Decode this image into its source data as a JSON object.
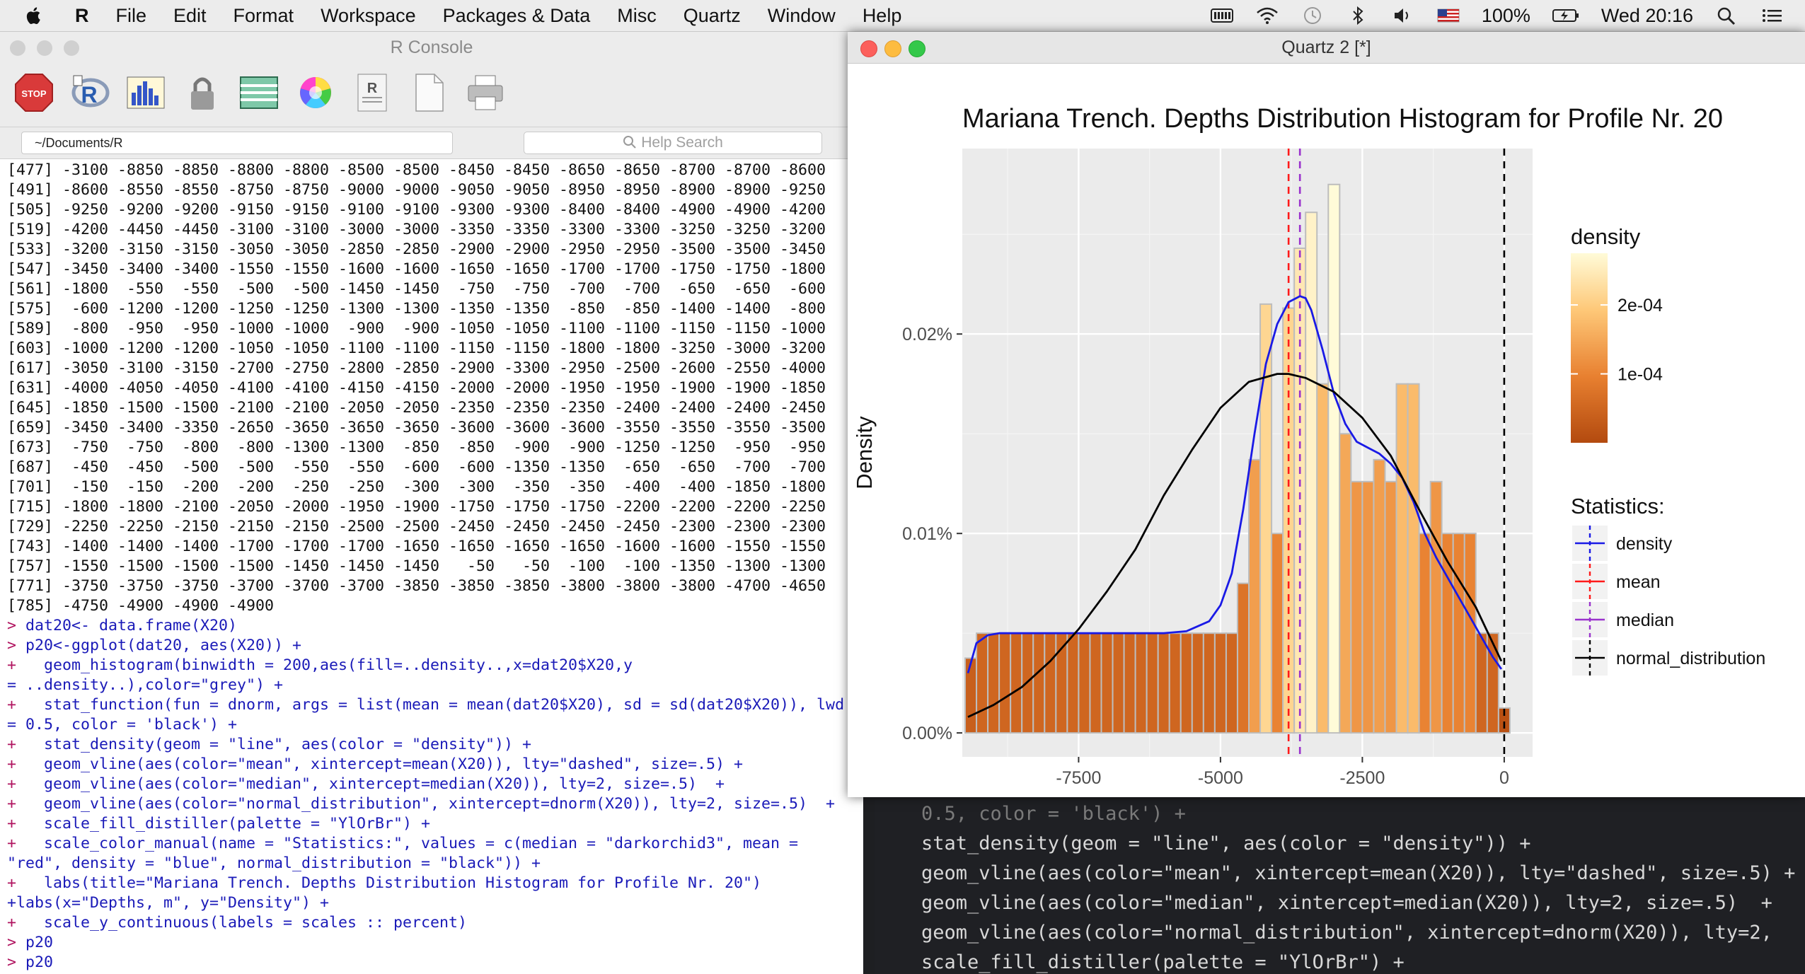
{
  "menubar": {
    "app_name": "R",
    "items": [
      "File",
      "Edit",
      "Format",
      "Workspace",
      "Packages & Data",
      "Misc",
      "Quartz",
      "Window",
      "Help"
    ],
    "battery": "100%",
    "clock": "Wed 20:16"
  },
  "console_window": {
    "title": "R Console",
    "path": "~/Documents/R",
    "help_search_placeholder": "Help Search",
    "toolbar_icons": [
      "stop-icon",
      "r-source-icon",
      "chart-icon",
      "lock-icon",
      "grid-table-icon",
      "color-wheel-icon",
      "r-doc-icon",
      "new-doc-icon",
      "print-icon"
    ],
    "output_lines": [
      "[477] -3100 -8850 -8850 -8800 -8800 -8500 -8500 -8450 -8450 -8650 -8650 -8700 -8700 -8600",
      "[491] -8600 -8550 -8550 -8750 -8750 -9000 -9000 -9050 -9050 -8950 -8950 -8900 -8900 -9250",
      "[505] -9250 -9200 -9200 -9150 -9150 -9100 -9100 -9300 -9300 -8400 -8400 -4900 -4900 -4200",
      "[519] -4200 -4450 -4450 -3100 -3100 -3000 -3000 -3350 -3350 -3300 -3300 -3250 -3250 -3200",
      "[533] -3200 -3150 -3150 -3050 -3050 -2850 -2850 -2900 -2900 -2950 -2950 -3500 -3500 -3450",
      "[547] -3450 -3400 -3400 -1550 -1550 -1600 -1600 -1650 -1650 -1700 -1700 -1750 -1750 -1800",
      "[561] -1800  -550  -550  -500  -500 -1450 -1450  -750  -750  -700  -700  -650  -650  -600",
      "[575]  -600 -1200 -1200 -1250 -1250 -1300 -1300 -1350 -1350  -850  -850 -1400 -1400  -800",
      "[589]  -800  -950  -950 -1000 -1000  -900  -900 -1050 -1050 -1100 -1100 -1150 -1150 -1000",
      "[603] -1000 -1200 -1200 -1050 -1050 -1100 -1100 -1150 -1150 -1800 -1800 -3250 -3000 -3200",
      "[617] -3050 -3100 -3150 -2700 -2750 -2800 -2850 -2900 -3300 -2950 -2500 -2600 -2550 -4000",
      "[631] -4000 -4050 -4050 -4100 -4100 -4150 -4150 -2000 -2000 -1950 -1950 -1900 -1900 -1850",
      "[645] -1850 -1500 -1500 -2100 -2100 -2050 -2050 -2350 -2350 -2350 -2400 -2400 -2400 -2450",
      "[659] -3450 -3400 -3350 -2650 -3650 -3650 -3650 -3600 -3600 -3600 -3550 -3550 -3550 -3500",
      "[673]  -750  -750  -800  -800 -1300 -1300  -850  -850  -900  -900 -1250 -1250  -950  -950",
      "[687]  -450  -450  -500  -500  -550  -550  -600  -600 -1350 -1350  -650  -650  -700  -700",
      "[701]  -150  -150  -200  -200  -250  -250  -300  -300  -350  -350  -400  -400 -1850 -1800",
      "[715] -1800 -1800 -2100 -2050 -2000 -1950 -1900 -1750 -1750 -1750 -2200 -2200 -2200 -2250",
      "[729] -2250 -2250 -2150 -2150 -2150 -2500 -2500 -2450 -2450 -2450 -2450 -2300 -2300 -2300",
      "[743] -1400 -1400 -1400 -1700 -1700 -1700 -1650 -1650 -1650 -1650 -1600 -1600 -1550 -1550",
      "[757] -1550 -1500 -1500 -1500 -1450 -1450 -1450   -50   -50  -100  -100 -1350 -1300 -1300",
      "[771] -3750 -3750 -3750 -3700 -3700 -3700 -3850 -3850 -3850 -3800 -3800 -3800 -4700 -4650",
      "[785] -4750 -4900 -4900 -4900"
    ],
    "command_lines": [
      {
        "prefix": "> ",
        "text": "dat20<- data.frame(X20)"
      },
      {
        "prefix": "> ",
        "text": "p20<-ggplot(dat20, aes(X20)) +"
      },
      {
        "prefix": "+ ",
        "text": "  geom_histogram(binwidth = 200,aes(fill=..density..,x=dat20$X20,y"
      },
      {
        "prefix": "",
        "text": "= ..density..),color=\"grey\") +"
      },
      {
        "prefix": "+ ",
        "text": "  stat_function(fun = dnorm, args = list(mean = mean(dat20$X20), sd = sd(dat20$X20)), lwd"
      },
      {
        "prefix": "",
        "text": "= 0.5, color = 'black') +"
      },
      {
        "prefix": "+ ",
        "text": "  stat_density(geom = \"line\", aes(color = \"density\")) +"
      },
      {
        "prefix": "+ ",
        "text": "  geom_vline(aes(color=\"mean\", xintercept=mean(X20)), lty=\"dashed\", size=.5) +"
      },
      {
        "prefix": "+ ",
        "text": "  geom_vline(aes(color=\"median\", xintercept=median(X20)), lty=2, size=.5)  +"
      },
      {
        "prefix": "+ ",
        "text": "  geom_vline(aes(color=\"normal_distribution\", xintercept=dnorm(X20)), lty=2, size=.5)  +"
      },
      {
        "prefix": "+ ",
        "text": "  scale_fill_distiller(palette = \"YlOrBr\") +"
      },
      {
        "prefix": "+ ",
        "text": "  scale_color_manual(name = \"Statistics:\", values = c(median = \"darkorchid3\", mean ="
      },
      {
        "prefix": "",
        "text": "\"red\", density = \"blue\", normal_distribution = \"black\")) +"
      },
      {
        "prefix": "+ ",
        "text": "  labs(title=\"Mariana Trench. Depths Distribution Histogram for Profile Nr. 20\")"
      },
      {
        "prefix": "",
        "text": "+labs(x=\"Depths, m\", y=\"Density\") +"
      },
      {
        "prefix": "+ ",
        "text": "  scale_y_continuous(labels = scales :: percent)"
      },
      {
        "prefix": "> ",
        "text": "p20"
      },
      {
        "prefix": "> ",
        "text": "p20"
      }
    ]
  },
  "editor": {
    "lines": [
      "0.5, color = 'black') +",
      "stat_density(geom = \"line\", aes(color = \"density\")) +",
      "geom_vline(aes(color=\"mean\", xintercept=mean(X20)), lty=\"dashed\", size=.5) +",
      "geom_vline(aes(color=\"median\", xintercept=median(X20)), lty=2, size=.5)  +",
      "geom_vline(aes(color=\"normal_distribution\", xintercept=dnorm(X20)), lty=2,",
      "scale_fill_distiller(palette = \"YlOrBr\") +"
    ]
  },
  "quartz_window": {
    "title": "Quartz 2 [*]"
  },
  "chart_data": {
    "type": "bar",
    "title": "Mariana Trench. Depths Distribution Histogram for Profile Nr. 20",
    "xlabel": "Depths, m",
    "ylabel": "Density",
    "xlim": [
      -9550,
      500
    ],
    "ylim": [
      -1.2e-05,
      0.000293
    ],
    "x_ticks": [
      -7500,
      -5000,
      -2500,
      0
    ],
    "x_tick_labels": [
      "-7500",
      "-5000",
      "-2500",
      "0"
    ],
    "y_ticks": [
      0,
      0.0001,
      0.0002
    ],
    "y_tick_labels": [
      "0.00%",
      "0.01%",
      "0.02%"
    ],
    "binwidth": 200,
    "bar_outline_color": "#bdbdbd",
    "bins": [
      {
        "x": -9400,
        "density": 3.75e-05
      },
      {
        "x": -9200,
        "density": 5e-05
      },
      {
        "x": -9000,
        "density": 5e-05
      },
      {
        "x": -8800,
        "density": 5e-05
      },
      {
        "x": -8600,
        "density": 5e-05
      },
      {
        "x": -8400,
        "density": 5e-05
      },
      {
        "x": -8200,
        "density": 5e-05
      },
      {
        "x": -8000,
        "density": 5e-05
      },
      {
        "x": -7800,
        "density": 5e-05
      },
      {
        "x": -7600,
        "density": 5e-05
      },
      {
        "x": -7400,
        "density": 5e-05
      },
      {
        "x": -7200,
        "density": 5e-05
      },
      {
        "x": -7000,
        "density": 5e-05
      },
      {
        "x": -6800,
        "density": 5e-05
      },
      {
        "x": -6600,
        "density": 5e-05
      },
      {
        "x": -6400,
        "density": 5e-05
      },
      {
        "x": -6200,
        "density": 5e-05
      },
      {
        "x": -6000,
        "density": 5e-05
      },
      {
        "x": -5800,
        "density": 5e-05
      },
      {
        "x": -5600,
        "density": 5e-05
      },
      {
        "x": -5400,
        "density": 5e-05
      },
      {
        "x": -5200,
        "density": 5e-05
      },
      {
        "x": -5000,
        "density": 5e-05
      },
      {
        "x": -4800,
        "density": 5e-05
      },
      {
        "x": -4600,
        "density": 7.5e-05
      },
      {
        "x": -4400,
        "density": 0.000137
      },
      {
        "x": -4200,
        "density": 0.000215
      },
      {
        "x": -4000,
        "density": 0.0001
      },
      {
        "x": -3800,
        "density": 0.000213
      },
      {
        "x": -3600,
        "density": 0.000243
      },
      {
        "x": -3400,
        "density": 0.000261
      },
      {
        "x": -3200,
        "density": 0.000175
      },
      {
        "x": -3000,
        "density": 0.000275
      },
      {
        "x": -2800,
        "density": 0.00015
      },
      {
        "x": -2600,
        "density": 0.000126
      },
      {
        "x": -2400,
        "density": 0.000126
      },
      {
        "x": -2200,
        "density": 0.000137
      },
      {
        "x": -2000,
        "density": 0.000126
      },
      {
        "x": -1800,
        "density": 0.000175
      },
      {
        "x": -1600,
        "density": 0.000175
      },
      {
        "x": -1400,
        "density": 0.0001
      },
      {
        "x": -1200,
        "density": 0.000126
      },
      {
        "x": -1000,
        "density": 0.0001
      },
      {
        "x": -800,
        "density": 0.0001
      },
      {
        "x": -600,
        "density": 0.0001
      },
      {
        "x": -400,
        "density": 5e-05
      },
      {
        "x": -200,
        "density": 5e-05
      },
      {
        "x": 0,
        "density": 1.25e-05
      }
    ],
    "series": [
      {
        "name": "density",
        "color": "#1a1ae6",
        "x": [
          -9450,
          -9300,
          -9100,
          -8900,
          -8600,
          -8200,
          -7800,
          -7200,
          -6600,
          -6000,
          -5600,
          -5200,
          -5000,
          -4800,
          -4600,
          -4400,
          -4200,
          -4000,
          -3800,
          -3600,
          -3500,
          -3400,
          -3200,
          -3000,
          -2800,
          -2600,
          -2400,
          -2200,
          -2000,
          -1800,
          -1600,
          -1400,
          -1200,
          -1000,
          -800,
          -600,
          -400,
          -200,
          -50
        ],
        "y": [
          3e-05,
          4.5e-05,
          4.9e-05,
          5e-05,
          5e-05,
          5e-05,
          5e-05,
          5e-05,
          5e-05,
          5e-05,
          5.1e-05,
          5.6e-05,
          6.4e-05,
          8e-05,
          0.000112,
          0.00015,
          0.000185,
          0.000205,
          0.000216,
          0.000219,
          0.000218,
          0.000212,
          0.000192,
          0.00017,
          0.000155,
          0.000146,
          0.000143,
          0.00014,
          0.000135,
          0.000128,
          0.000116,
          0.0001,
          8.8e-05,
          7.8e-05,
          6.8e-05,
          5.8e-05,
          4.8e-05,
          3.8e-05,
          3.2e-05
        ]
      },
      {
        "name": "normal_distribution",
        "color": "#000000",
        "x": [
          -9450,
          -9000,
          -8500,
          -8000,
          -7500,
          -7000,
          -6500,
          -6000,
          -5500,
          -5000,
          -4500,
          -4000,
          -3800,
          -3500,
          -3000,
          -2500,
          -2000,
          -1500,
          -1000,
          -500,
          -50
        ],
        "y": [
          8e-06,
          1.4e-05,
          2.3e-05,
          3.6e-05,
          5.2e-05,
          7.1e-05,
          9.2e-05,
          0.000119,
          0.000142,
          0.000163,
          0.000176,
          0.00018,
          0.00018,
          0.000178,
          0.000171,
          0.000158,
          0.000139,
          0.000112,
          8.6e-05,
          6.3e-05,
          3.6e-05
        ]
      }
    ],
    "vlines": [
      {
        "name": "mean",
        "x": -3800,
        "color": "#ff1a1a"
      },
      {
        "name": "median",
        "x": -3600,
        "color": "#9a32cd"
      },
      {
        "name": "normal_distribution",
        "x": 0,
        "color": "#000000"
      }
    ],
    "fill_legend": {
      "title": "density",
      "breaks": [
        0.0002,
        0.0001
      ],
      "labels": [
        "2e-04",
        "1e-04"
      ],
      "low_color": "#b34a0f",
      "high_color": "#fffbd8"
    },
    "color_legend": {
      "title": "Statistics:",
      "entries": [
        {
          "label": "density",
          "color": "#1a1ae6"
        },
        {
          "label": "mean",
          "color": "#ff1a1a"
        },
        {
          "label": "median",
          "color": "#9a32cd"
        },
        {
          "label": "normal_distribution",
          "color": "#000000"
        }
      ]
    },
    "panel_background": "#ebebeb",
    "grid": true,
    "legend_position": "right"
  }
}
